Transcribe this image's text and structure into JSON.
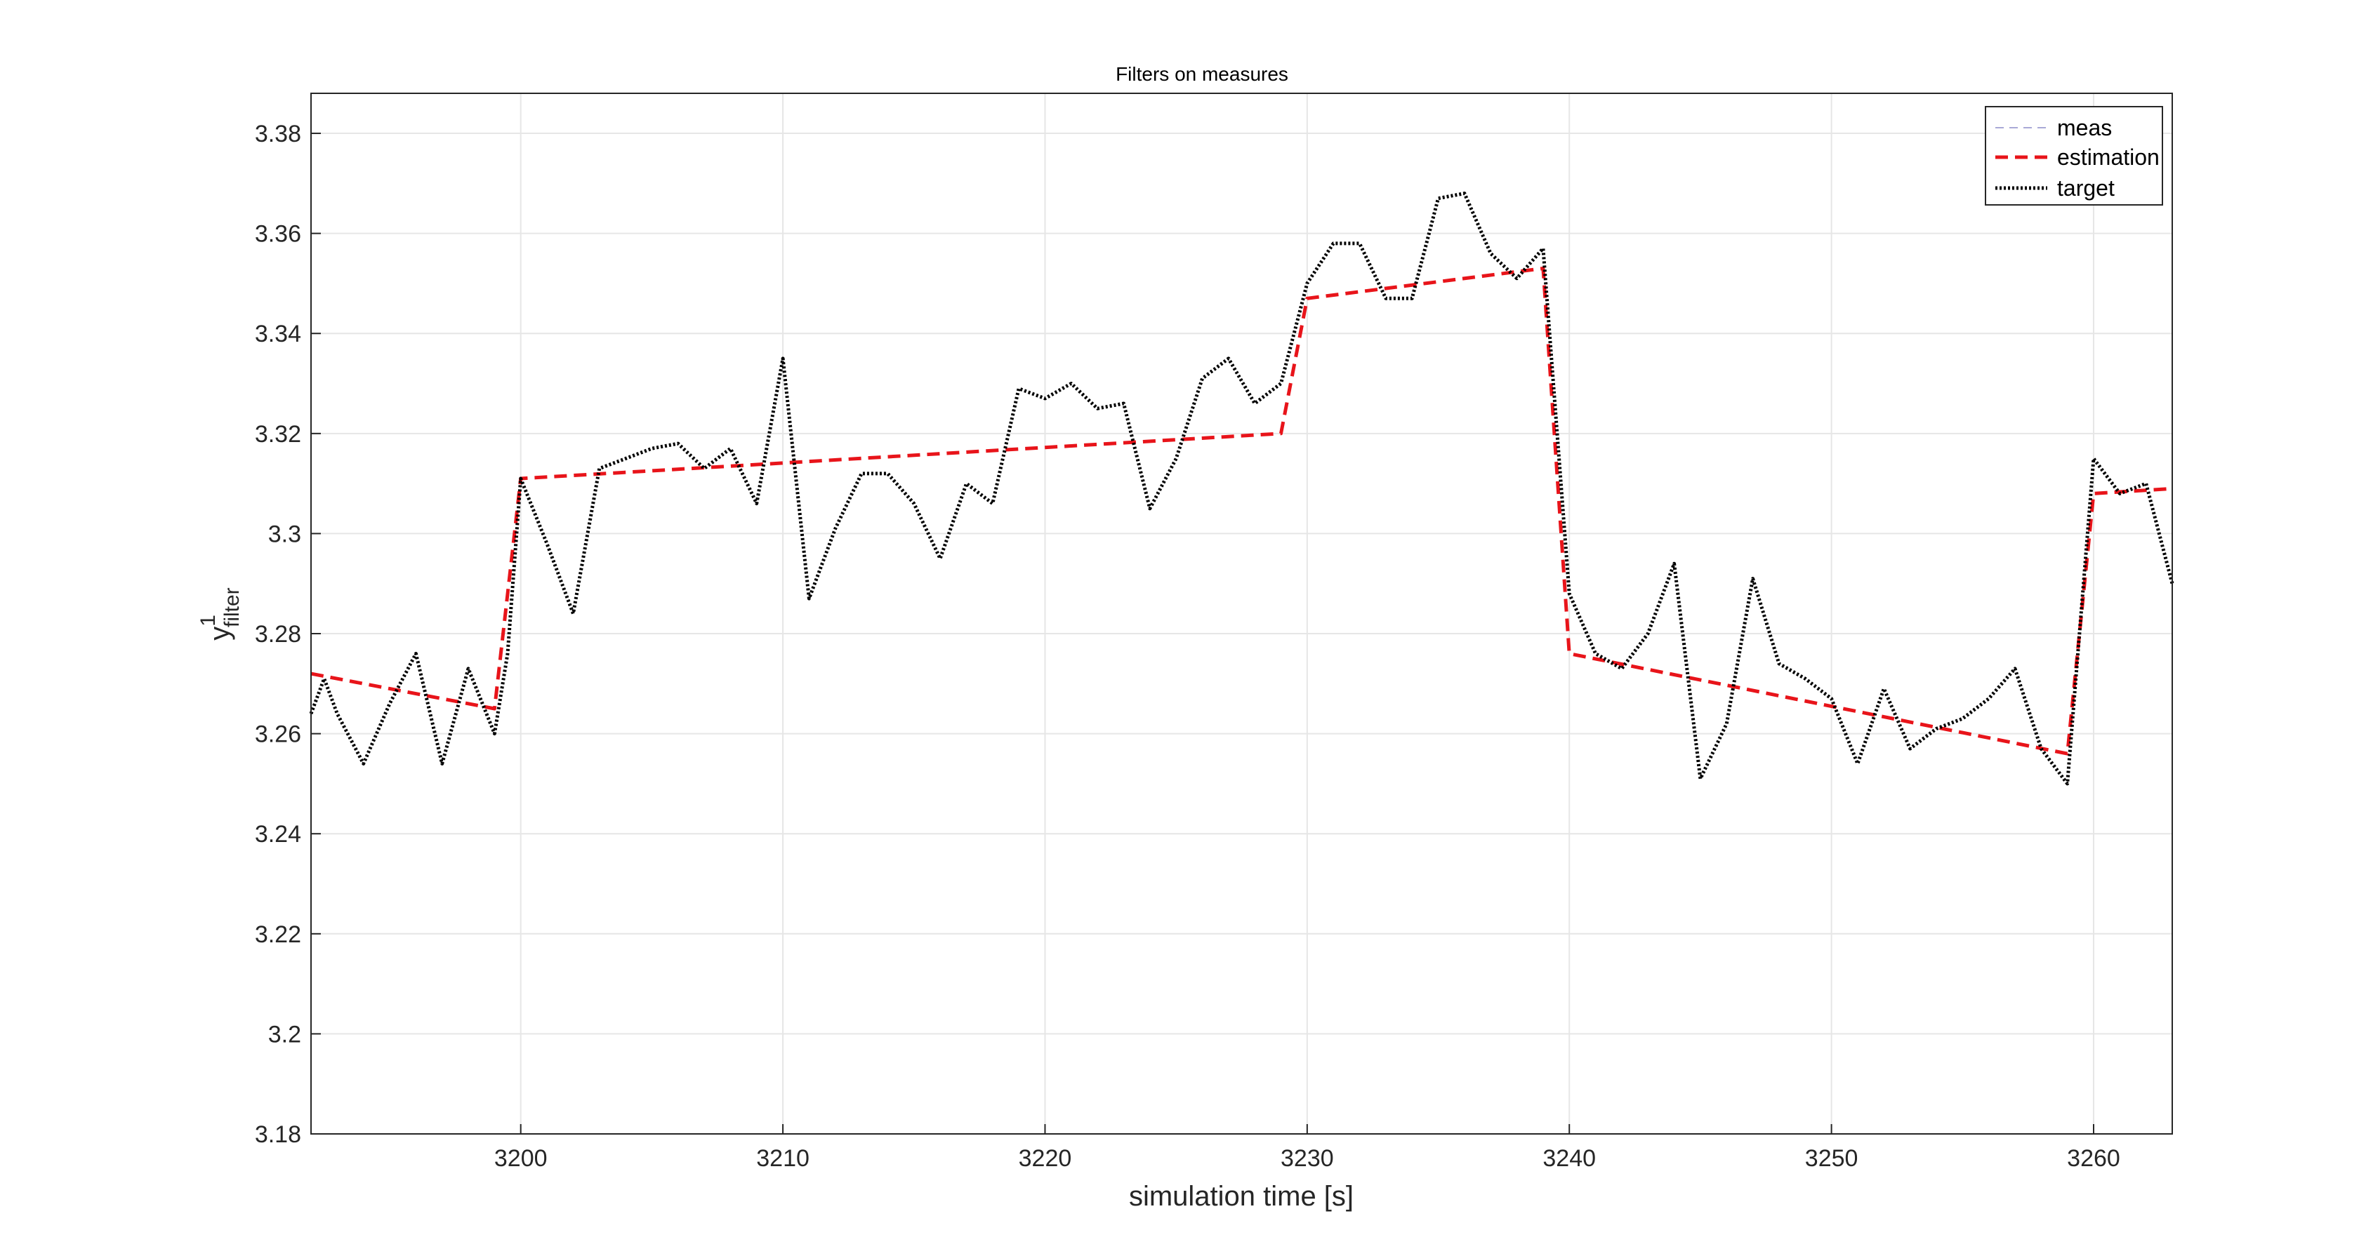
{
  "chart_data": {
    "type": "line",
    "title": "Filters on measures",
    "xlabel": "simulation time [s]",
    "ylabel_base": "y",
    "ylabel_sup": "1",
    "ylabel_sub": "filter",
    "xlim": [
      3192,
      3263
    ],
    "ylim": [
      3.18,
      3.388
    ],
    "x_ticks": [
      3200,
      3210,
      3220,
      3230,
      3240,
      3250,
      3260
    ],
    "y_ticks": [
      3.18,
      3.2,
      3.22,
      3.24,
      3.26,
      3.28,
      3.3,
      3.32,
      3.34,
      3.36,
      3.38
    ],
    "y_tick_labels": [
      "3.18",
      "3.2",
      "3.22",
      "3.24",
      "3.26",
      "3.28",
      "3.3",
      "3.32",
      "3.34",
      "3.36",
      "3.38"
    ],
    "x_tick_labels": [
      "3200",
      "3210",
      "3220",
      "3230",
      "3240",
      "3250",
      "3260"
    ],
    "grid": true,
    "legend_position": "top-right",
    "series": [
      {
        "name": "meas",
        "color": "#a9a9d6",
        "style": "dashed-thin",
        "points": []
      },
      {
        "name": "estimation",
        "color": "#e8141a",
        "style": "dashed",
        "points": [
          [
            3192,
            3.272
          ],
          [
            3199,
            3.265
          ],
          [
            3200,
            3.311
          ],
          [
            3229,
            3.32
          ],
          [
            3230,
            3.347
          ],
          [
            3239,
            3.353
          ],
          [
            3240,
            3.276
          ],
          [
            3259,
            3.256
          ],
          [
            3260,
            3.308
          ],
          [
            3263,
            3.309
          ]
        ]
      },
      {
        "name": "target",
        "color": "#000000",
        "style": "dotted",
        "points": [
          [
            3192,
            3.264
          ],
          [
            3192.5,
            3.271
          ],
          [
            3193,
            3.264
          ],
          [
            3194,
            3.254
          ],
          [
            3195,
            3.266
          ],
          [
            3196,
            3.276
          ],
          [
            3197,
            3.254
          ],
          [
            3198,
            3.273
          ],
          [
            3199,
            3.26
          ],
          [
            3199.5,
            3.276
          ],
          [
            3200,
            3.311
          ],
          [
            3201,
            3.298
          ],
          [
            3202,
            3.284
          ],
          [
            3203,
            3.313
          ],
          [
            3204,
            3.315
          ],
          [
            3205,
            3.317
          ],
          [
            3206,
            3.318
          ],
          [
            3207,
            3.313
          ],
          [
            3208,
            3.317
          ],
          [
            3209,
            3.306
          ],
          [
            3210,
            3.335
          ],
          [
            3211,
            3.287
          ],
          [
            3212,
            3.301
          ],
          [
            3213,
            3.312
          ],
          [
            3214,
            3.312
          ],
          [
            3215,
            3.306
          ],
          [
            3216,
            3.295
          ],
          [
            3217,
            3.31
          ],
          [
            3218,
            3.306
          ],
          [
            3219,
            3.329
          ],
          [
            3220,
            3.327
          ],
          [
            3221,
            3.33
          ],
          [
            3222,
            3.325
          ],
          [
            3223,
            3.326
          ],
          [
            3224,
            3.305
          ],
          [
            3225,
            3.315
          ],
          [
            3226,
            3.331
          ],
          [
            3227,
            3.335
          ],
          [
            3228,
            3.326
          ],
          [
            3229,
            3.33
          ],
          [
            3230,
            3.35
          ],
          [
            3231,
            3.358
          ],
          [
            3232,
            3.358
          ],
          [
            3233,
            3.347
          ],
          [
            3234,
            3.347
          ],
          [
            3235,
            3.367
          ],
          [
            3236,
            3.368
          ],
          [
            3237,
            3.356
          ],
          [
            3238,
            3.351
          ],
          [
            3239,
            3.357
          ],
          [
            3240,
            3.288
          ],
          [
            3241,
            3.276
          ],
          [
            3242,
            3.273
          ],
          [
            3243,
            3.28
          ],
          [
            3244,
            3.294
          ],
          [
            3245,
            3.251
          ],
          [
            3246,
            3.262
          ],
          [
            3247,
            3.291
          ],
          [
            3248,
            3.274
          ],
          [
            3249,
            3.271
          ],
          [
            3250,
            3.267
          ],
          [
            3251,
            3.254
          ],
          [
            3252,
            3.269
          ],
          [
            3253,
            3.257
          ],
          [
            3254,
            3.261
          ],
          [
            3255,
            3.263
          ],
          [
            3256,
            3.267
          ],
          [
            3257,
            3.273
          ],
          [
            3258,
            3.257
          ],
          [
            3259,
            3.25
          ],
          [
            3260,
            3.315
          ],
          [
            3261,
            3.308
          ],
          [
            3262,
            3.31
          ],
          [
            3263,
            3.29
          ]
        ]
      }
    ]
  }
}
